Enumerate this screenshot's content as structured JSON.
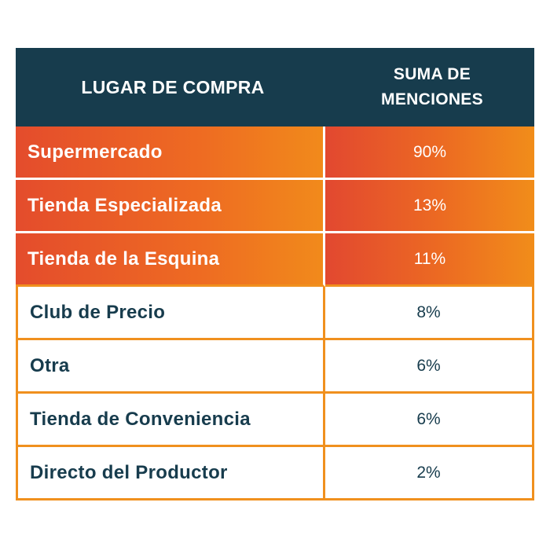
{
  "chart_data": {
    "type": "table",
    "columns": [
      "LUGAR DE COMPRA",
      "SUMA DE MENCIONES"
    ],
    "header": {
      "col1": "LUGAR DE COMPRA",
      "col2_line1": "SUMA DE",
      "col2_line2": "MENCIONES"
    },
    "rows": [
      {
        "lugar": "Supermercado",
        "menciones": "90%",
        "value": 90,
        "highlighted": true
      },
      {
        "lugar": "Tienda Especializada",
        "menciones": "13%",
        "value": 13,
        "highlighted": true
      },
      {
        "lugar": "Tienda de la Esquina",
        "menciones": "11%",
        "value": 11,
        "highlighted": true
      },
      {
        "lugar": "Club de Precio",
        "menciones": "8%",
        "value": 8,
        "highlighted": false
      },
      {
        "lugar": "Otra",
        "menciones": "6%",
        "value": 6,
        "highlighted": false
      },
      {
        "lugar": "Tienda de Conveniencia",
        "menciones": "6%",
        "value": 6,
        "highlighted": false
      },
      {
        "lugar": "Directo del Productor",
        "menciones": "2%",
        "value": 2,
        "highlighted": false
      }
    ]
  },
  "colors": {
    "header_bg": "#173c4d",
    "header_text": "#ffffff",
    "highlight_start": "#e24830",
    "highlight_end": "#f18d1a",
    "border": "#f0901e",
    "body_text": "#173c4d"
  }
}
